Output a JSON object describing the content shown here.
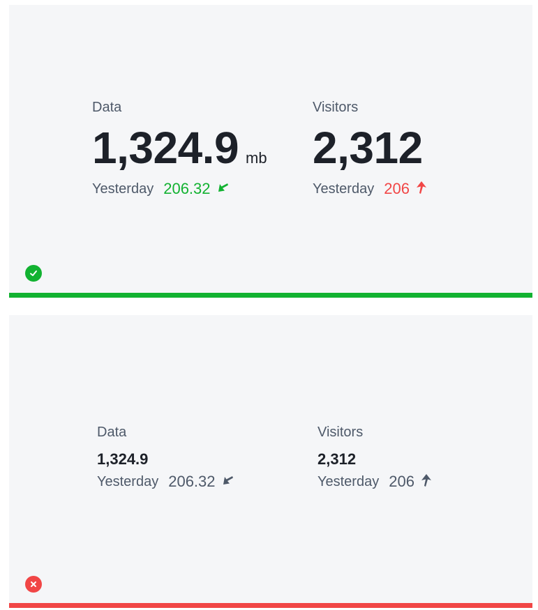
{
  "colors": {
    "good": "#12b231",
    "bad": "#f14646",
    "neutral": "#4e5969",
    "panel_bg": "#f5f6f8"
  },
  "good_example": {
    "status_icon": "check-circle-icon",
    "data": {
      "label": "Data",
      "value": "1,324.9",
      "unit": "mb",
      "compare_label": "Yesterday",
      "compare_value": "206.32",
      "trend_icon": "arrow-down-left-icon"
    },
    "visitors": {
      "label": "Visitors",
      "value": "2,312",
      "compare_label": "Yesterday",
      "compare_value": "206",
      "trend_icon": "arrow-up-icon"
    }
  },
  "bad_example": {
    "status_icon": "close-circle-icon",
    "data": {
      "label": "Data",
      "value": "1,324.9",
      "compare_label": "Yesterday",
      "compare_value": "206.32",
      "trend_icon": "arrow-down-left-icon"
    },
    "visitors": {
      "label": "Visitors",
      "value": "2,312",
      "compare_label": "Yesterday",
      "compare_value": "206",
      "trend_icon": "arrow-up-icon"
    }
  }
}
